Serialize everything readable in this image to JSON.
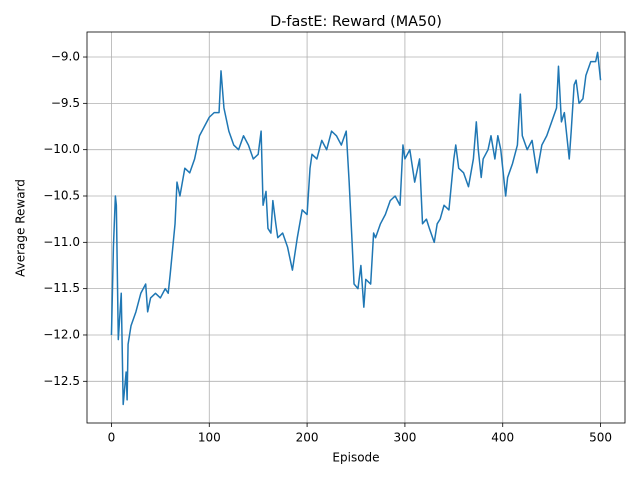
{
  "chart_data": {
    "type": "line",
    "title": "D-fastE: Reward (MA50)",
    "xlabel": "Episode",
    "ylabel": "Average Reward",
    "color": "#1f77b4",
    "grid": true,
    "xlim": [
      -25,
      525
    ],
    "xticks": [
      0,
      100,
      200,
      300,
      400,
      500
    ],
    "ylim": [
      -12.95,
      -8.73
    ],
    "yticks": [
      {
        "value": -12.5,
        "label": "−12.5"
      },
      {
        "value": -12,
        "label": "−12.0"
      },
      {
        "value": -11.5,
        "label": "−11.5"
      },
      {
        "value": -11,
        "label": "−11.0"
      },
      {
        "value": -10.5,
        "label": "−10.5"
      },
      {
        "value": -10,
        "label": "−10.0"
      },
      {
        "value": -9.5,
        "label": "−9.5"
      },
      {
        "value": -9,
        "label": "−9.0"
      }
    ],
    "x": [
      0,
      2,
      4,
      5,
      7,
      10,
      12,
      15,
      16,
      17,
      20,
      25,
      30,
      35,
      37,
      40,
      45,
      50,
      55,
      58,
      60,
      65,
      67,
      70,
      75,
      80,
      85,
      90,
      95,
      100,
      105,
      110,
      112,
      115,
      120,
      125,
      130,
      135,
      140,
      145,
      150,
      153,
      155,
      158,
      160,
      163,
      165,
      168,
      170,
      175,
      180,
      185,
      190,
      195,
      200,
      203,
      205,
      210,
      215,
      220,
      225,
      230,
      235,
      240,
      243,
      246,
      248,
      252,
      255,
      258,
      260,
      265,
      268,
      270,
      275,
      280,
      285,
      290,
      295,
      298,
      300,
      305,
      310,
      315,
      318,
      322,
      325,
      330,
      333,
      336,
      340,
      345,
      350,
      352,
      355,
      360,
      365,
      370,
      373,
      375,
      378,
      380,
      385,
      388,
      392,
      395,
      398,
      400,
      403,
      405,
      410,
      415,
      418,
      420,
      425,
      430,
      435,
      440,
      445,
      450,
      455,
      457,
      460,
      463,
      466,
      468,
      470,
      473,
      475,
      478,
      482,
      485,
      490,
      495,
      497,
      500
    ],
    "values": [
      -12.0,
      -11.05,
      -10.5,
      -10.6,
      -12.05,
      -11.55,
      -12.75,
      -12.4,
      -12.7,
      -12.1,
      -11.9,
      -11.75,
      -11.55,
      -11.45,
      -11.75,
      -11.6,
      -11.55,
      -11.6,
      -11.5,
      -11.55,
      -11.35,
      -10.8,
      -10.35,
      -10.5,
      -10.2,
      -10.25,
      -10.1,
      -9.85,
      -9.75,
      -9.65,
      -9.6,
      -9.6,
      -9.15,
      -9.55,
      -9.8,
      -9.95,
      -10.0,
      -9.85,
      -9.95,
      -10.1,
      -10.05,
      -9.8,
      -10.6,
      -10.45,
      -10.85,
      -10.9,
      -10.55,
      -10.8,
      -10.95,
      -10.9,
      -11.05,
      -11.3,
      -10.95,
      -10.65,
      -10.7,
      -10.2,
      -10.05,
      -10.1,
      -9.9,
      -10.0,
      -9.8,
      -9.85,
      -9.95,
      -9.8,
      -10.35,
      -11.0,
      -11.45,
      -11.5,
      -11.25,
      -11.7,
      -11.4,
      -11.45,
      -10.9,
      -10.95,
      -10.8,
      -10.7,
      -10.55,
      -10.5,
      -10.6,
      -9.95,
      -10.1,
      -10.0,
      -10.35,
      -10.1,
      -10.8,
      -10.75,
      -10.85,
      -11.0,
      -10.8,
      -10.75,
      -10.6,
      -10.65,
      -10.1,
      -9.95,
      -10.2,
      -10.25,
      -10.4,
      -10.1,
      -9.7,
      -10.0,
      -10.3,
      -10.1,
      -10.0,
      -9.85,
      -10.1,
      -9.85,
      -10.0,
      -10.2,
      -10.5,
      -10.3,
      -10.15,
      -9.95,
      -9.4,
      -9.85,
      -10.0,
      -9.9,
      -10.25,
      -9.95,
      -9.85,
      -9.7,
      -9.55,
      -9.1,
      -9.7,
      -9.6,
      -9.9,
      -10.1,
      -9.8,
      -9.3,
      -9.25,
      -9.5,
      -9.45,
      -9.2,
      -9.05,
      -9.05,
      -8.95,
      -9.25
    ]
  }
}
